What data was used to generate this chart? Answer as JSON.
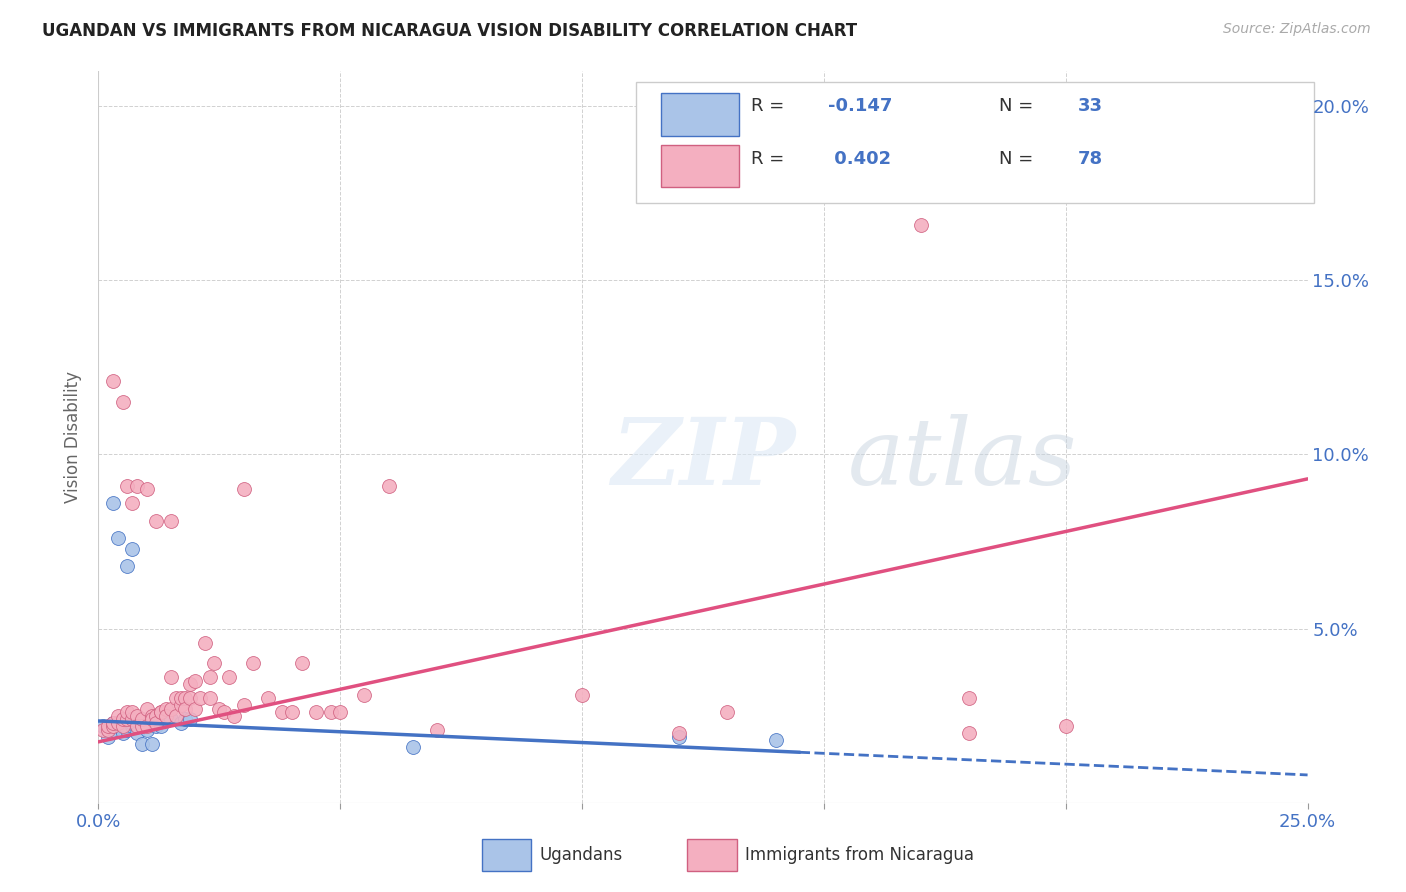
{
  "title": "UGANDAN VS IMMIGRANTS FROM NICARAGUA VISION DISABILITY CORRELATION CHART",
  "source": "Source: ZipAtlas.com",
  "ylabel": "Vision Disability",
  "xlim": [
    0.0,
    0.25
  ],
  "ylim": [
    0.0,
    0.21
  ],
  "yticks": [
    0.0,
    0.05,
    0.1,
    0.15,
    0.2
  ],
  "ytick_labels": [
    "",
    "5.0%",
    "10.0%",
    "15.0%",
    "20.0%"
  ],
  "xticks": [
    0.0,
    0.05,
    0.1,
    0.15,
    0.2,
    0.25
  ],
  "xtick_labels": [
    "0.0%",
    "",
    "",
    "",
    "",
    "25.0%"
  ],
  "color_ugandan": "#aac4e8",
  "color_nicaragua": "#f4afc0",
  "color_line_ugandan": "#4472c4",
  "color_line_nicaragua": "#e05080",
  "color_axis_labels": "#4472c4",
  "color_title": "#222222",
  "background_color": "#ffffff",
  "ugandan_points": [
    [
      0.001,
      0.022
    ],
    [
      0.002,
      0.021
    ],
    [
      0.002,
      0.019
    ],
    [
      0.003,
      0.023
    ],
    [
      0.003,
      0.021
    ],
    [
      0.004,
      0.022
    ],
    [
      0.004,
      0.023
    ],
    [
      0.005,
      0.022
    ],
    [
      0.005,
      0.02
    ],
    [
      0.006,
      0.022
    ],
    [
      0.006,
      0.021
    ],
    [
      0.007,
      0.022
    ],
    [
      0.007,
      0.023
    ],
    [
      0.008,
      0.022
    ],
    [
      0.008,
      0.02
    ],
    [
      0.009,
      0.022
    ],
    [
      0.01,
      0.021
    ],
    [
      0.011,
      0.023
    ],
    [
      0.012,
      0.022
    ],
    [
      0.013,
      0.022
    ],
    [
      0.015,
      0.024
    ],
    [
      0.017,
      0.023
    ],
    [
      0.018,
      0.024
    ],
    [
      0.019,
      0.024
    ],
    [
      0.003,
      0.086
    ],
    [
      0.004,
      0.076
    ],
    [
      0.006,
      0.068
    ],
    [
      0.007,
      0.073
    ],
    [
      0.009,
      0.017
    ],
    [
      0.011,
      0.017
    ],
    [
      0.065,
      0.016
    ],
    [
      0.12,
      0.019
    ],
    [
      0.14,
      0.018
    ]
  ],
  "nicaragua_points": [
    [
      0.001,
      0.021
    ],
    [
      0.002,
      0.021
    ],
    [
      0.002,
      0.022
    ],
    [
      0.003,
      0.022
    ],
    [
      0.003,
      0.023
    ],
    [
      0.004,
      0.023
    ],
    [
      0.004,
      0.025
    ],
    [
      0.005,
      0.022
    ],
    [
      0.005,
      0.024
    ],
    [
      0.006,
      0.024
    ],
    [
      0.006,
      0.026
    ],
    [
      0.007,
      0.024
    ],
    [
      0.007,
      0.026
    ],
    [
      0.008,
      0.025
    ],
    [
      0.008,
      0.022
    ],
    [
      0.009,
      0.022
    ],
    [
      0.009,
      0.024
    ],
    [
      0.01,
      0.027
    ],
    [
      0.01,
      0.022
    ],
    [
      0.011,
      0.025
    ],
    [
      0.011,
      0.024
    ],
    [
      0.012,
      0.025
    ],
    [
      0.012,
      0.023
    ],
    [
      0.013,
      0.026
    ],
    [
      0.013,
      0.026
    ],
    [
      0.014,
      0.027
    ],
    [
      0.014,
      0.025
    ],
    [
      0.015,
      0.027
    ],
    [
      0.015,
      0.036
    ],
    [
      0.016,
      0.03
    ],
    [
      0.016,
      0.025
    ],
    [
      0.017,
      0.028
    ],
    [
      0.017,
      0.03
    ],
    [
      0.018,
      0.03
    ],
    [
      0.018,
      0.027
    ],
    [
      0.019,
      0.03
    ],
    [
      0.019,
      0.034
    ],
    [
      0.02,
      0.027
    ],
    [
      0.02,
      0.035
    ],
    [
      0.021,
      0.03
    ],
    [
      0.022,
      0.046
    ],
    [
      0.023,
      0.036
    ],
    [
      0.023,
      0.03
    ],
    [
      0.024,
      0.04
    ],
    [
      0.025,
      0.027
    ],
    [
      0.026,
      0.026
    ],
    [
      0.027,
      0.036
    ],
    [
      0.028,
      0.025
    ],
    [
      0.03,
      0.028
    ],
    [
      0.032,
      0.04
    ],
    [
      0.035,
      0.03
    ],
    [
      0.038,
      0.026
    ],
    [
      0.04,
      0.026
    ],
    [
      0.042,
      0.04
    ],
    [
      0.045,
      0.026
    ],
    [
      0.048,
      0.026
    ],
    [
      0.05,
      0.026
    ],
    [
      0.055,
      0.031
    ],
    [
      0.003,
      0.121
    ],
    [
      0.005,
      0.115
    ],
    [
      0.006,
      0.091
    ],
    [
      0.007,
      0.086
    ],
    [
      0.008,
      0.091
    ],
    [
      0.01,
      0.09
    ],
    [
      0.012,
      0.081
    ],
    [
      0.015,
      0.081
    ],
    [
      0.03,
      0.09
    ],
    [
      0.06,
      0.091
    ],
    [
      0.1,
      0.031
    ],
    [
      0.13,
      0.026
    ],
    [
      0.18,
      0.03
    ],
    [
      0.17,
      0.166
    ],
    [
      0.12,
      0.02
    ],
    [
      0.18,
      0.02
    ],
    [
      0.2,
      0.022
    ],
    [
      0.07,
      0.021
    ]
  ],
  "trendline_ugandan": {
    "x_start": 0.0,
    "y_start": 0.0235,
    "x_end": 0.25,
    "y_end": 0.008
  },
  "trendline_nicaragua": {
    "x_start": 0.0,
    "y_start": 0.0175,
    "x_end": 0.25,
    "y_end": 0.093
  },
  "trendline_ugandan_solid_end": 0.145
}
